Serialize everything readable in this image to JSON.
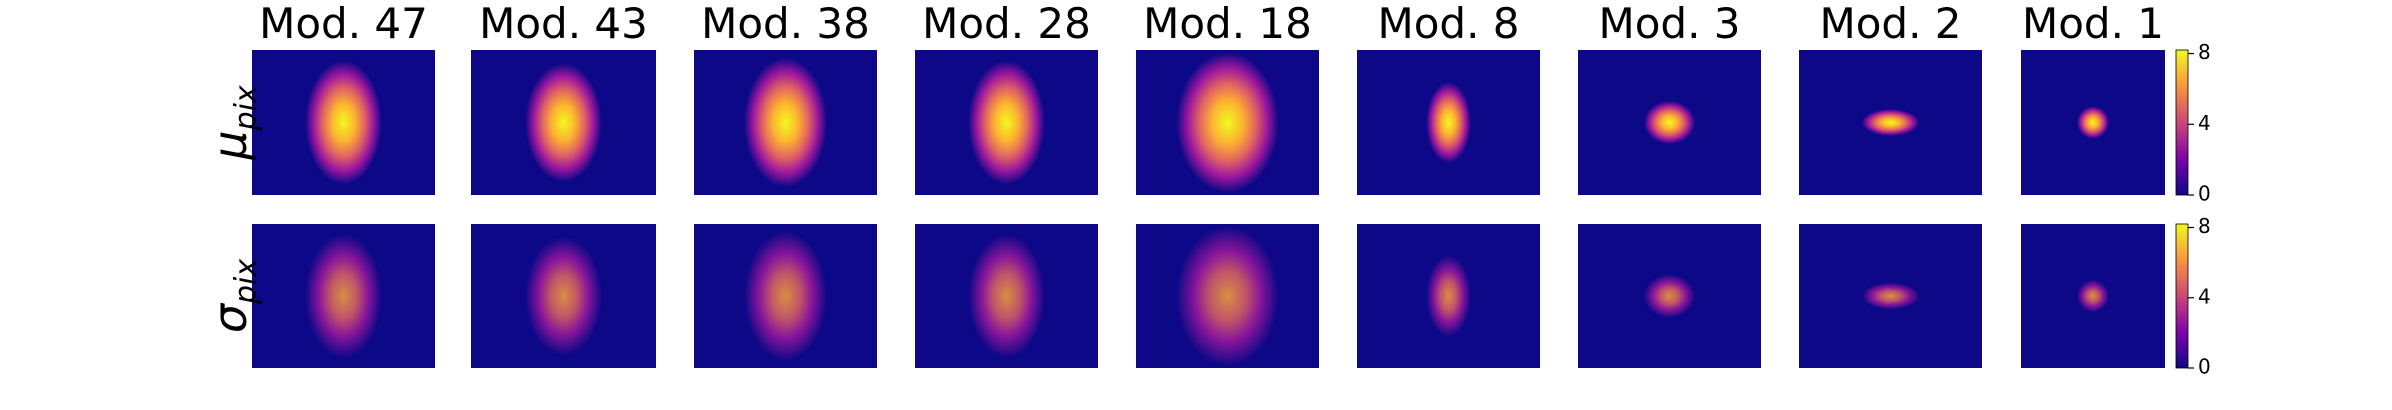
{
  "chart_data": {
    "type": "heatmap",
    "columns": [
      "Mod. 47",
      "Mod. 43",
      "Mod. 38",
      "Mod. 28",
      "Mod. 18",
      "Mod. 8",
      "Mod. 3",
      "Mod. 2",
      "Mod. 1"
    ],
    "rows": [
      {
        "symbol": "μ",
        "subscript": "pix"
      },
      {
        "symbol": "σ",
        "subscript": "pix"
      }
    ],
    "colormap": "plasma",
    "colorbar": {
      "ylim": [
        0,
        8.2
      ],
      "yticks": [
        0,
        4,
        8
      ]
    }
  }
}
